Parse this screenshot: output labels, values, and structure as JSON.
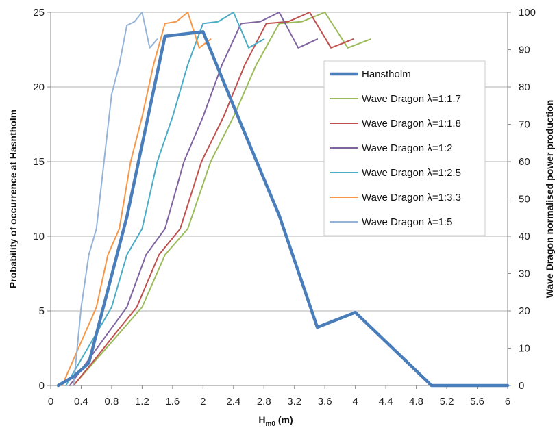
{
  "chart_data": {
    "type": "line",
    "xlabel": "H",
    "xlabel_sub": "m0",
    "xlabel_unit": " (m)",
    "ylabel_left": "Probability of occurrence at Hasntholm",
    "ylabel_right": "Wave Dragon normalised power production",
    "xlim": [
      0,
      6
    ],
    "ylim_left": [
      0,
      25
    ],
    "ylim_right": [
      0,
      100
    ],
    "x_ticks": [
      "0",
      "0.4",
      "0.8",
      "1.2",
      "1.6",
      "2",
      "2.4",
      "2.8",
      "3.2",
      "3.6",
      "4",
      "4.4",
      "4.8",
      "5.2",
      "5.6",
      "6"
    ],
    "y_left_ticks": [
      "0",
      "5",
      "10",
      "15",
      "20",
      "25"
    ],
    "y_right_ticks": [
      "0",
      "10",
      "20",
      "30",
      "40",
      "50",
      "60",
      "70",
      "80",
      "90",
      "100"
    ],
    "grid": "horizontal",
    "legend_position": "right",
    "series": [
      {
        "name": "Hanstholm",
        "axis": "left",
        "color": "#4a7ebb",
        "width": 4.5,
        "x": [
          0.1,
          0.3,
          0.5,
          1.0,
          1.5,
          2.0,
          2.5,
          3.0,
          3.5,
          4.0,
          5.0,
          6.0
        ],
        "y": [
          0,
          0.6,
          1.5,
          11.3,
          23.4,
          23.7,
          17.5,
          11.4,
          3.9,
          4.9,
          0,
          0
        ]
      },
      {
        "name": "Wave Dragon λ=1:1.7",
        "axis": "right",
        "color": "#9bbb59",
        "width": 2,
        "x": [
          0.3,
          0.6,
          0.9,
          1.2,
          1.5,
          1.8,
          2.1,
          2.4,
          2.7,
          3.0,
          3.3,
          3.6,
          3.9,
          4.2
        ],
        "y": [
          0,
          7,
          14,
          21,
          35,
          42,
          60,
          72,
          86,
          97,
          97.5,
          100,
          90.5,
          92.8
        ]
      },
      {
        "name": "Wave Dragon λ=1:1.8",
        "axis": "right",
        "color": "#c0504d",
        "width": 2,
        "x": [
          0.3,
          0.58,
          0.85,
          1.13,
          1.42,
          1.7,
          1.98,
          2.27,
          2.55,
          2.83,
          3.12,
          3.4,
          3.68,
          3.97
        ],
        "y": [
          0,
          7,
          14,
          21,
          35,
          42,
          60,
          72,
          86,
          97,
          97.5,
          100,
          90.5,
          92.8
        ]
      },
      {
        "name": "Wave Dragon λ=1:2",
        "axis": "right",
        "color": "#8064a2",
        "width": 2,
        "x": [
          0.25,
          0.5,
          0.75,
          1.0,
          1.25,
          1.5,
          1.75,
          2.0,
          2.25,
          2.5,
          2.75,
          3.0,
          3.25,
          3.5
        ],
        "y": [
          0,
          7,
          14,
          21,
          35,
          42,
          60,
          72,
          86,
          97,
          97.5,
          100,
          90.5,
          92.8
        ]
      },
      {
        "name": "Wave Dragon λ=1:2.5",
        "axis": "right",
        "color": "#4bacc6",
        "width": 2,
        "x": [
          0.2,
          0.4,
          0.6,
          0.8,
          1.0,
          1.2,
          1.4,
          1.6,
          1.8,
          2.0,
          2.2,
          2.4,
          2.6,
          2.8
        ],
        "y": [
          0,
          7,
          14,
          21,
          35,
          42,
          60,
          72,
          86,
          97,
          97.5,
          100,
          90.5,
          92.8
        ]
      },
      {
        "name": "Wave Dragon λ=1:3.3",
        "axis": "right",
        "color": "#f79646",
        "width": 2,
        "x": [
          0.15,
          0.3,
          0.45,
          0.6,
          0.75,
          0.9,
          1.05,
          1.2,
          1.35,
          1.5,
          1.65,
          1.8,
          1.95,
          2.1
        ],
        "y": [
          0,
          7,
          14,
          21,
          35,
          42,
          60,
          72,
          86,
          97,
          97.5,
          100,
          90.5,
          92.8
        ]
      },
      {
        "name": "Wave Dragon λ=1:5",
        "axis": "right",
        "color": "#95b3d7",
        "width": 2,
        "x": [
          0.3,
          0.4,
          0.5,
          0.6,
          0.7,
          0.8,
          0.9,
          1.0,
          1.1,
          1.2,
          1.3,
          1.4
        ],
        "y": [
          0,
          21,
          35,
          42,
          60,
          78,
          86,
          96.5,
          97.5,
          100,
          90.5,
          92.8
        ]
      }
    ]
  }
}
